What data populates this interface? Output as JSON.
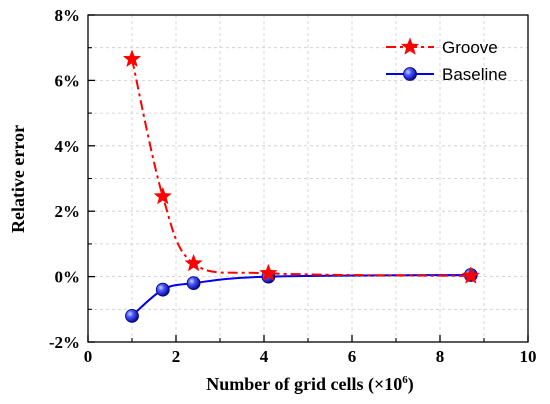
{
  "chart_data": {
    "type": "line",
    "title": "",
    "xlabel": "Number of grid cells (×10⁶)",
    "xlabel_main": "Number of grid cells (×10",
    "xlabel_exp": "6",
    "xlabel_close": ")",
    "ylabel": "Relative error",
    "xlim": [
      0,
      10
    ],
    "ylim": [
      -2,
      8
    ],
    "x_ticks": [
      "0",
      "2",
      "4",
      "6",
      "8",
      "10"
    ],
    "y_ticks": [
      "-2%",
      "0%",
      "2%",
      "4%",
      "6%",
      "8%"
    ],
    "grid": true,
    "legend_position": "top-right",
    "series": [
      {
        "name": "Groove",
        "color": "#ff0000",
        "marker": "star",
        "line_style": "dash-dot",
        "x": [
          1.0,
          1.7,
          2.4,
          4.1,
          8.7
        ],
        "y": [
          6.65,
          2.45,
          0.4,
          0.1,
          0.02
        ]
      },
      {
        "name": "Baseline",
        "color": "#0000ee",
        "marker": "circle",
        "line_style": "solid",
        "x": [
          1.0,
          1.7,
          2.4,
          4.1,
          8.7
        ],
        "y": [
          -1.2,
          -0.4,
          -0.2,
          0.0,
          0.05
        ]
      }
    ]
  }
}
